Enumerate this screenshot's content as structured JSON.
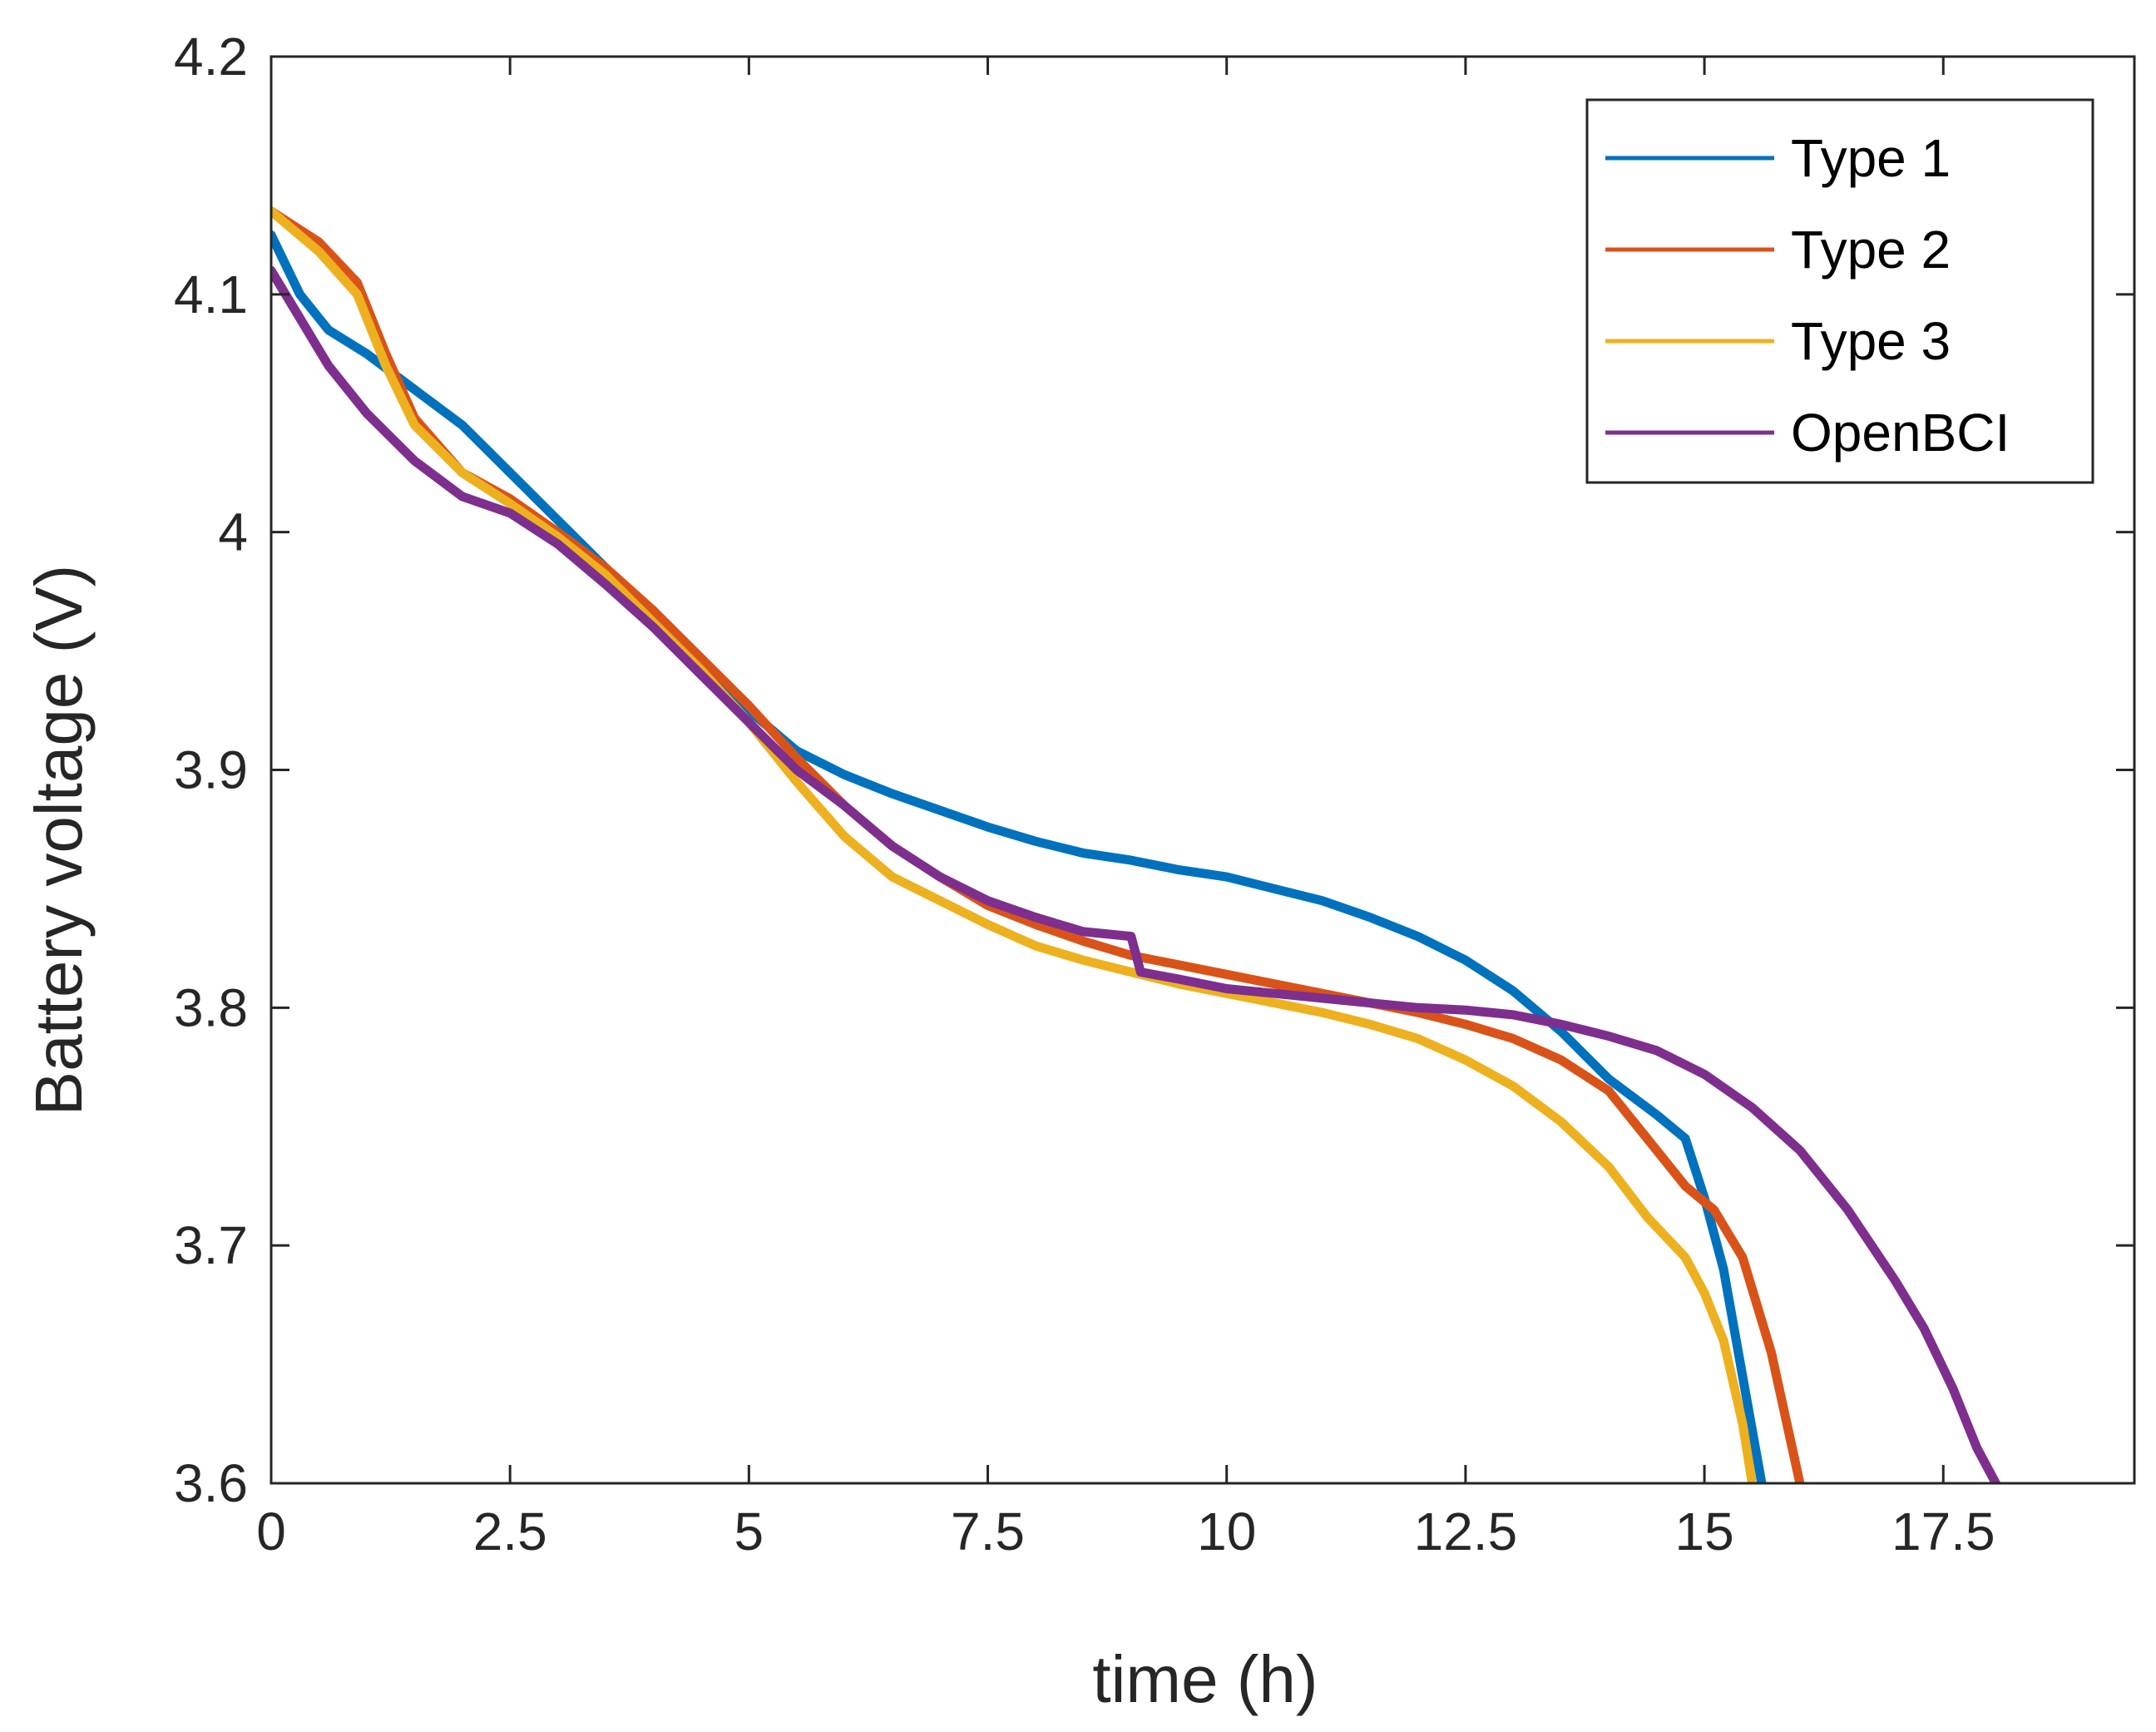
{
  "chart_data": {
    "type": "line",
    "title": "",
    "xlabel": "time (h)",
    "ylabel": "Battery voltage (V)",
    "xlim": [
      0,
      19.5
    ],
    "ylim": [
      3.6,
      4.2
    ],
    "x_ticks": [
      0,
      2.5,
      5,
      7.5,
      10,
      12.5,
      15,
      17.5
    ],
    "x_tick_labels": [
      "0",
      "2.5",
      "5",
      "7.5",
      "10",
      "12.5",
      "15",
      "17.5"
    ],
    "y_ticks": [
      3.6,
      3.7,
      3.8,
      3.9,
      4.0,
      4.1,
      4.2
    ],
    "y_tick_labels": [
      "3.6",
      "3.7",
      "3.8",
      "3.9",
      "4",
      "4.1",
      "4.2"
    ],
    "grid": false,
    "legend_position": "top-right",
    "series": [
      {
        "name": "Type 1",
        "color": "#0072BD",
        "x": [
          0,
          0.3,
          0.6,
          1.0,
          1.5,
          2.0,
          2.5,
          3.0,
          3.5,
          4.0,
          4.5,
          5.0,
          5.5,
          6.0,
          6.5,
          7.0,
          7.5,
          8.0,
          8.5,
          9.0,
          9.5,
          10.0,
          10.5,
          11.0,
          11.5,
          12.0,
          12.5,
          13.0,
          13.5,
          14.0,
          14.5,
          14.8,
          15.0,
          15.2,
          15.4,
          15.6
        ],
        "y": [
          4.125,
          4.1,
          4.085,
          4.075,
          4.06,
          4.045,
          4.025,
          4.005,
          3.985,
          3.965,
          3.945,
          3.925,
          3.908,
          3.898,
          3.89,
          3.883,
          3.876,
          3.87,
          3.865,
          3.862,
          3.858,
          3.855,
          3.85,
          3.845,
          3.838,
          3.83,
          3.82,
          3.807,
          3.79,
          3.77,
          3.755,
          3.745,
          3.72,
          3.69,
          3.645,
          3.6
        ]
      },
      {
        "name": "Type 2",
        "color": "#D95319",
        "x": [
          0,
          0.5,
          0.9,
          1.2,
          1.5,
          2.0,
          2.5,
          3.0,
          3.5,
          4.0,
          4.5,
          5.0,
          5.5,
          6.0,
          6.5,
          7.0,
          7.5,
          8.0,
          8.5,
          9.0,
          9.5,
          10.0,
          10.5,
          11.0,
          11.5,
          12.0,
          12.5,
          13.0,
          13.5,
          14.0,
          14.4,
          14.8,
          15.1,
          15.4,
          15.7,
          16.0
        ],
        "y": [
          4.135,
          4.122,
          4.105,
          4.075,
          4.048,
          4.025,
          4.014,
          4.0,
          3.985,
          3.967,
          3.947,
          3.927,
          3.905,
          3.885,
          3.868,
          3.855,
          3.843,
          3.835,
          3.828,
          3.822,
          3.818,
          3.814,
          3.81,
          3.806,
          3.802,
          3.798,
          3.793,
          3.787,
          3.778,
          3.765,
          3.745,
          3.725,
          3.715,
          3.695,
          3.655,
          3.6
        ]
      },
      {
        "name": "Type 3",
        "color": "#EDB120",
        "x": [
          0,
          0.5,
          0.9,
          1.2,
          1.5,
          2.0,
          2.5,
          3.0,
          3.5,
          4.0,
          4.5,
          5.0,
          5.5,
          6.0,
          6.5,
          7.0,
          7.5,
          8.0,
          8.5,
          9.0,
          9.5,
          10.0,
          10.5,
          11.0,
          11.5,
          12.0,
          12.5,
          13.0,
          13.5,
          14.0,
          14.4,
          14.8,
          15.0,
          15.2,
          15.4,
          15.5
        ],
        "y": [
          4.135,
          4.118,
          4.1,
          4.07,
          4.045,
          4.025,
          4.012,
          3.998,
          3.982,
          3.962,
          3.942,
          3.92,
          3.895,
          3.872,
          3.855,
          3.845,
          3.835,
          3.826,
          3.82,
          3.815,
          3.81,
          3.806,
          3.802,
          3.798,
          3.793,
          3.787,
          3.778,
          3.767,
          3.752,
          3.733,
          3.712,
          3.695,
          3.68,
          3.66,
          3.625,
          3.6
        ]
      },
      {
        "name": "OpenBCI",
        "color": "#7E2F8E",
        "x": [
          0,
          0.3,
          0.6,
          1.0,
          1.5,
          2.0,
          2.5,
          3.0,
          3.5,
          4.0,
          4.5,
          5.0,
          5.5,
          6.0,
          6.5,
          7.0,
          7.5,
          8.0,
          8.5,
          9.0,
          9.1,
          9.5,
          10.0,
          10.5,
          11.0,
          11.5,
          12.0,
          12.5,
          13.0,
          13.5,
          14.0,
          14.5,
          15.0,
          15.5,
          16.0,
          16.5,
          17.0,
          17.3,
          17.6,
          17.85,
          18.05
        ],
        "y": [
          4.11,
          4.09,
          4.07,
          4.05,
          4.03,
          4.015,
          4.008,
          3.995,
          3.978,
          3.96,
          3.94,
          3.92,
          3.9,
          3.885,
          3.868,
          3.855,
          3.845,
          3.838,
          3.832,
          3.83,
          3.815,
          3.812,
          3.808,
          3.806,
          3.804,
          3.802,
          3.8,
          3.799,
          3.797,
          3.793,
          3.788,
          3.782,
          3.772,
          3.758,
          3.74,
          3.715,
          3.685,
          3.665,
          3.64,
          3.615,
          3.6
        ]
      }
    ]
  }
}
